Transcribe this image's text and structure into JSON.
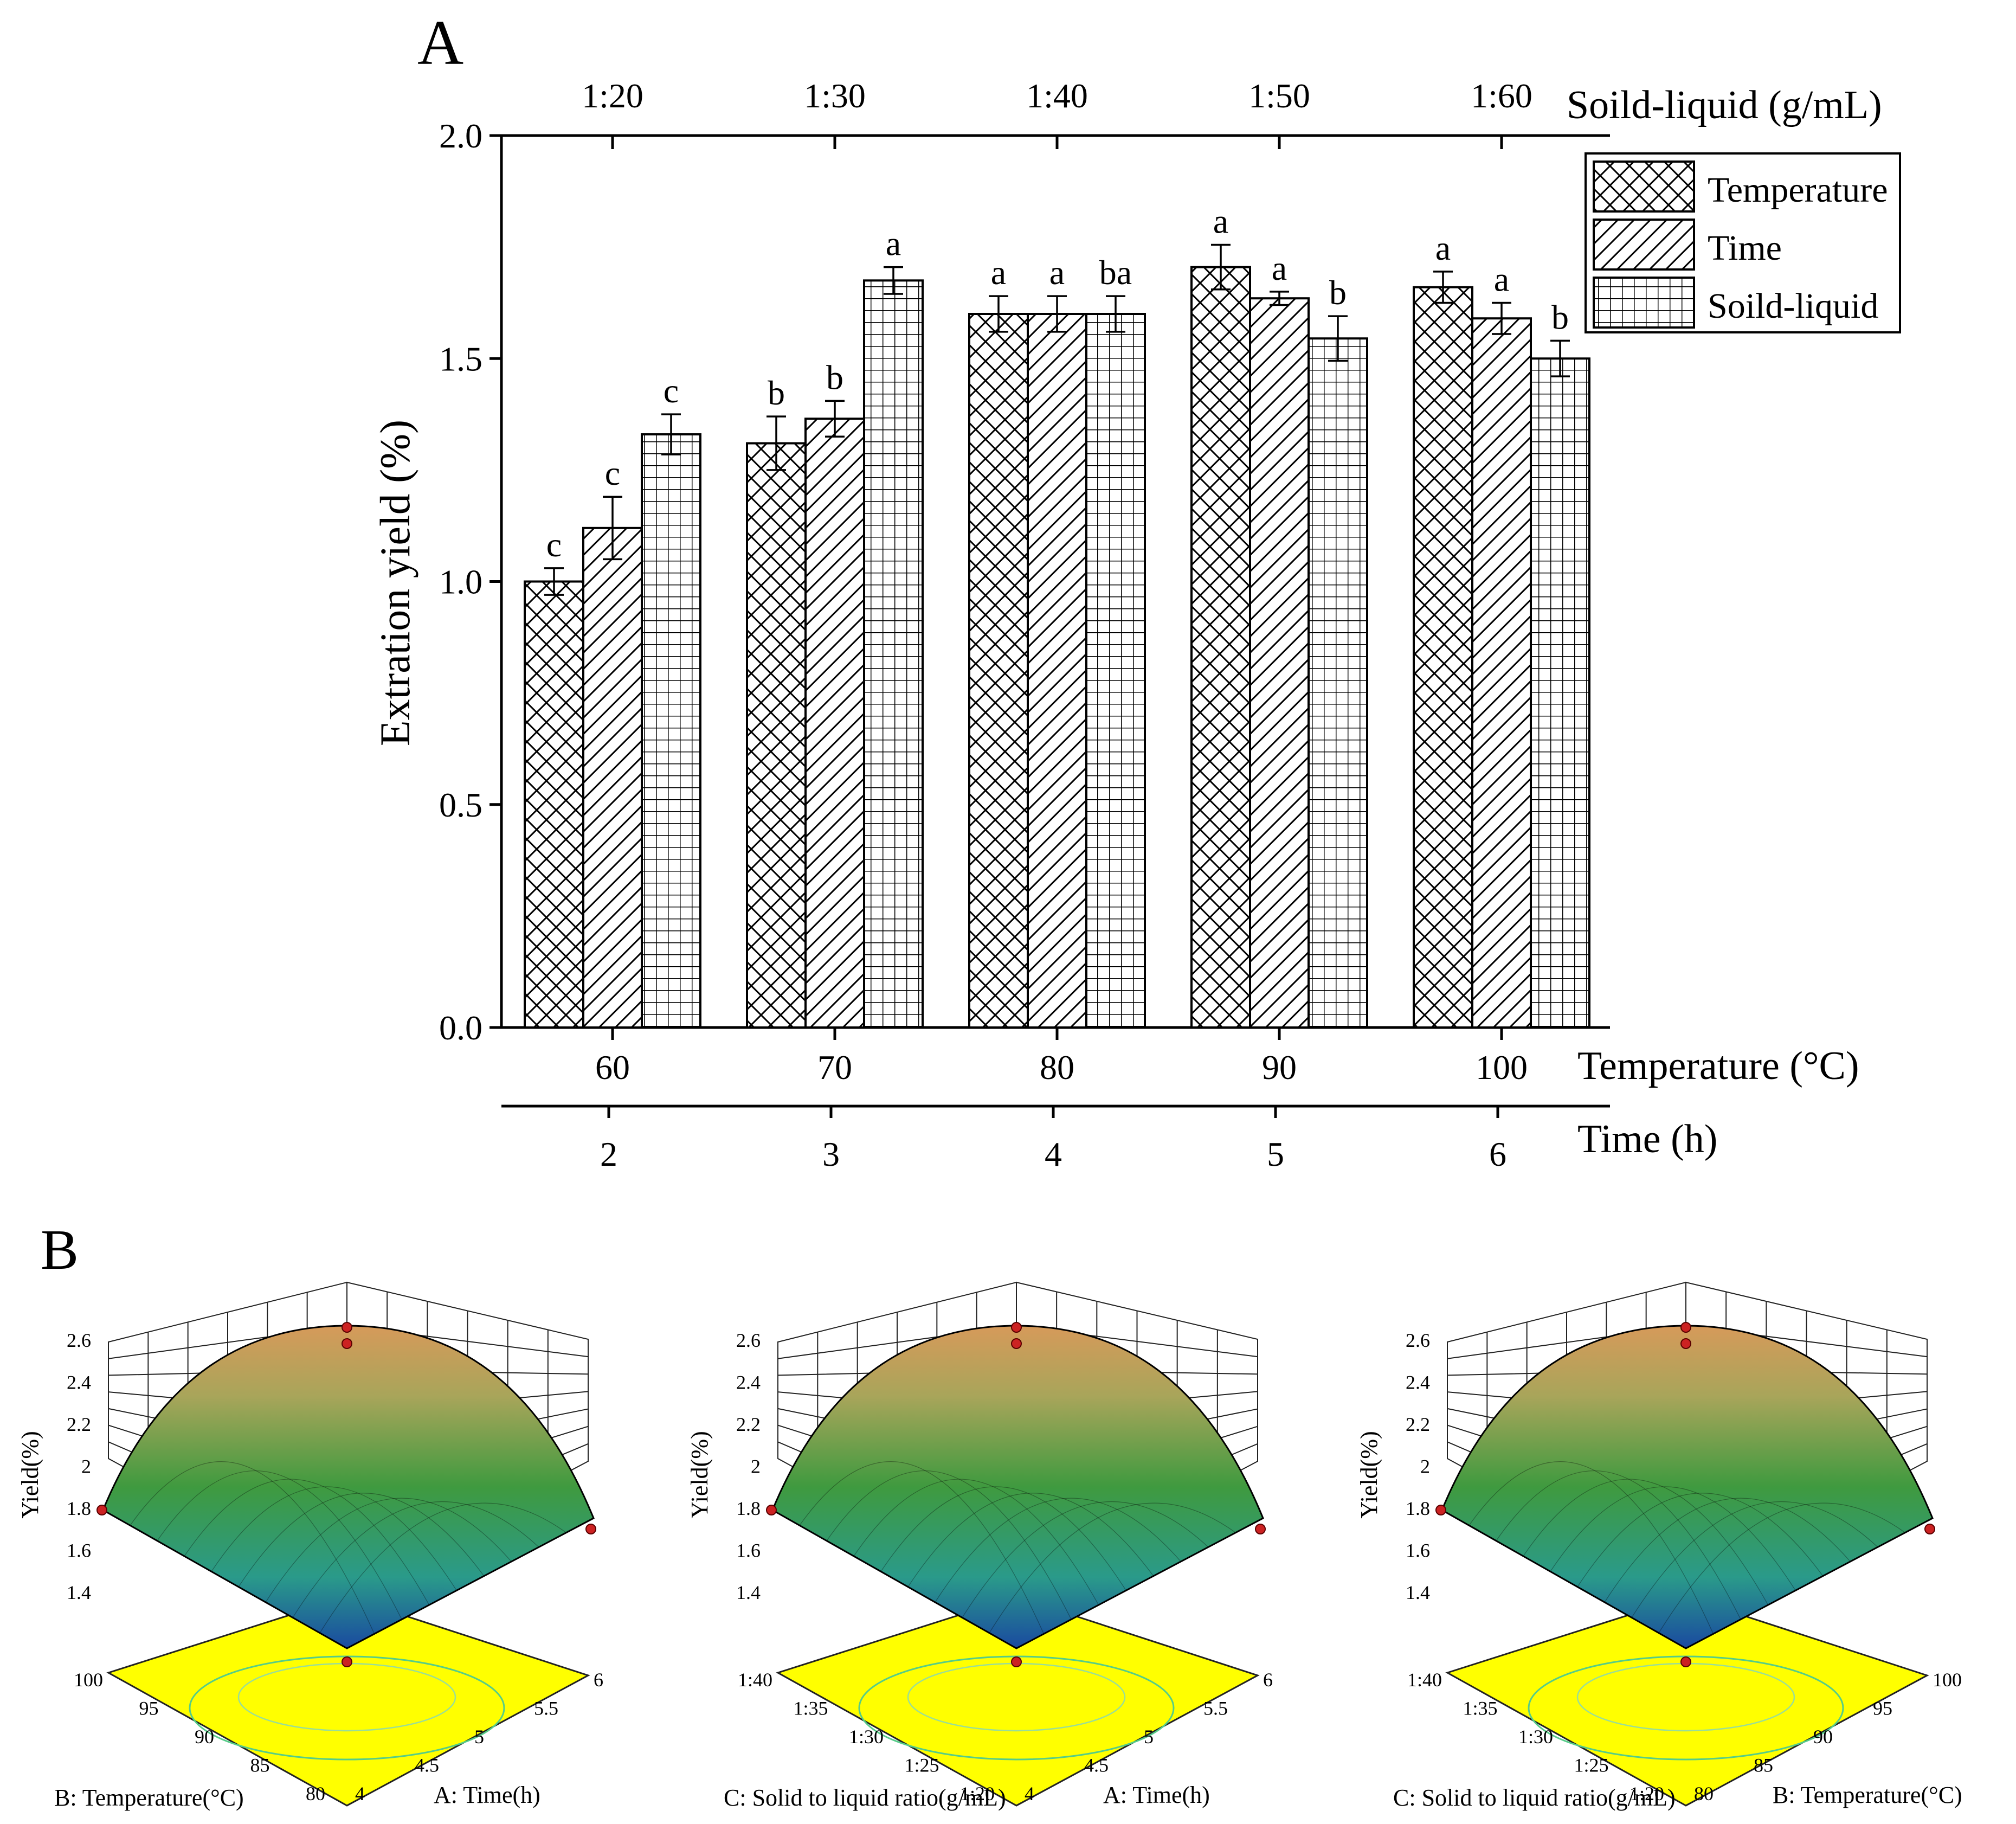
{
  "panel_a_letter": "A",
  "panel_b_letter": "B",
  "colors": {
    "axis": "#000000",
    "bar_fill": "#ffffff",
    "base_plane": "#ffff00",
    "contour": "#55cc88",
    "point": "#cc2222"
  },
  "chart_data": [
    {
      "type": "bar",
      "id": "panel-A",
      "ylabel": "Extration yield (%)",
      "ylim": [
        0,
        2.0
      ],
      "yticks": [
        "0.0",
        "0.5",
        "1.0",
        "1.5",
        "2.0"
      ],
      "top_axis": {
        "label": "Soild-liquid (g/mL)",
        "ticks": [
          "1:20",
          "1:30",
          "1:40",
          "1:50",
          "1:60"
        ]
      },
      "bottom_axis_1": {
        "label": "Temperature (°C)",
        "ticks": [
          "60",
          "70",
          "80",
          "90",
          "100"
        ]
      },
      "bottom_axis_2": {
        "label": "Time (h)",
        "ticks": [
          "2",
          "3",
          "4",
          "5",
          "6"
        ]
      },
      "legend": {
        "position": "top-right",
        "entries": [
          "Temperature",
          "Time",
          "Soild-liquid"
        ]
      },
      "series": [
        {
          "name": "Temperature",
          "pattern": "crosshatch",
          "values": [
            1.0,
            1.31,
            1.6,
            1.705,
            1.66
          ],
          "errors": [
            0.03,
            0.06,
            0.04,
            0.05,
            0.035
          ],
          "letters": [
            "c",
            "b",
            "a",
            "a",
            "a"
          ]
        },
        {
          "name": "Time",
          "pattern": "diagonal",
          "values": [
            1.12,
            1.365,
            1.6,
            1.635,
            1.59
          ],
          "errors": [
            0.07,
            0.04,
            0.04,
            0.015,
            0.035
          ],
          "letters": [
            "c",
            "b",
            "a",
            "a",
            "a"
          ]
        },
        {
          "name": "Soild-liquid",
          "pattern": "grid",
          "values": [
            1.33,
            1.675,
            1.6,
            1.545,
            1.5
          ],
          "errors": [
            0.045,
            0.03,
            0.04,
            0.05,
            0.04
          ],
          "letters": [
            "c",
            "a",
            "ba",
            "b",
            "b"
          ]
        }
      ]
    },
    {
      "type": "surface",
      "id": "surface-1",
      "zlabel": "Yield(%)",
      "zticks": [
        "1.4",
        "1.6",
        "1.8",
        "2",
        "2.2",
        "2.4",
        "2.6"
      ],
      "left_axis": {
        "label": "B: Temperature(°C)",
        "ticks": [
          "100",
          "95",
          "90",
          "85",
          "80"
        ]
      },
      "right_axis": {
        "label": "A: Time(h)",
        "ticks": [
          "4",
          "4.5",
          "5",
          "5.5",
          "6"
        ]
      }
    },
    {
      "type": "surface",
      "id": "surface-2",
      "zlabel": "Yield(%)",
      "zticks": [
        "1.4",
        "1.6",
        "1.8",
        "2",
        "2.2",
        "2.4",
        "2.6"
      ],
      "left_axis": {
        "label": "C: Solid to liquid ratio(g/mL)",
        "ticks": [
          "1:40",
          "1:35",
          "1:30",
          "1:25",
          "1:20"
        ]
      },
      "right_axis": {
        "label": "A: Time(h)",
        "ticks": [
          "4",
          "4.5",
          "5",
          "5.5",
          "6"
        ]
      }
    },
    {
      "type": "surface",
      "id": "surface-3",
      "zlabel": "Yield(%)",
      "zticks": [
        "1.4",
        "1.6",
        "1.8",
        "2",
        "2.2",
        "2.4",
        "2.6"
      ],
      "left_axis": {
        "label": "C: Solid to liquid ratio(g/mL)",
        "ticks": [
          "1:40",
          "1:35",
          "1:30",
          "1:25",
          "1:20"
        ]
      },
      "right_axis": {
        "label": "B: Temperature(°C)",
        "ticks": [
          "80",
          "85",
          "90",
          "95",
          "100"
        ]
      }
    }
  ]
}
